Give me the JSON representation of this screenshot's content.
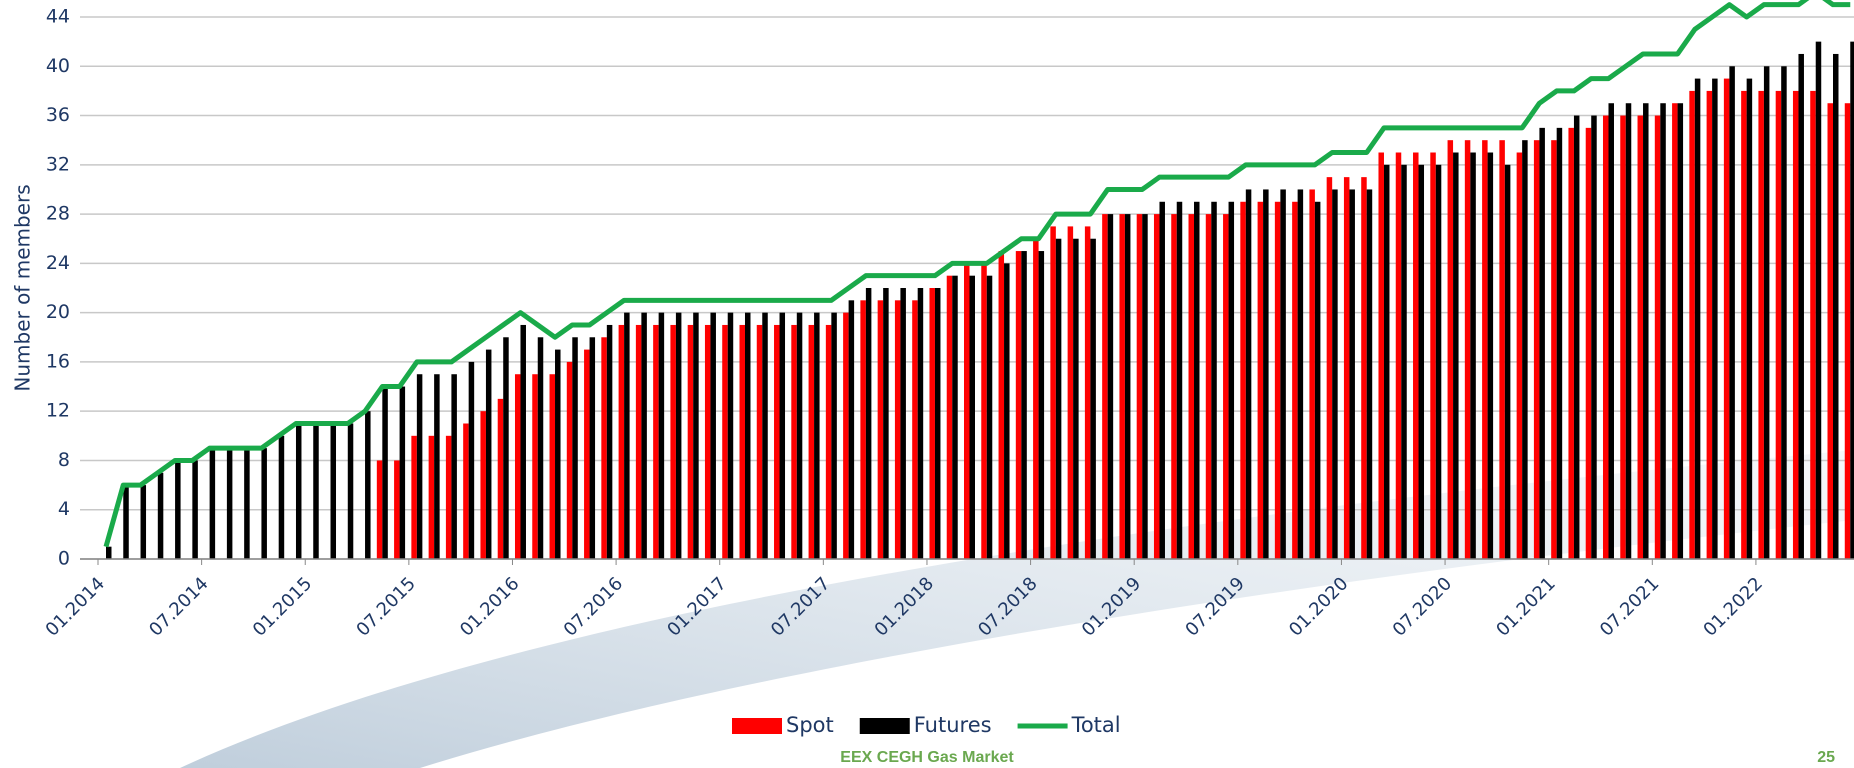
{
  "chart_data": {
    "type": "bar_line",
    "y_label": "Number of members",
    "footer": "EEX CEGH Gas Market",
    "page_number": "25",
    "categories": [
      "01.2014",
      null,
      null,
      null,
      null,
      null,
      "07.2014",
      null,
      null,
      null,
      null,
      null,
      "01.2015",
      null,
      null,
      null,
      null,
      null,
      "07.2015",
      null,
      null,
      null,
      null,
      null,
      "01.2016",
      null,
      null,
      null,
      null,
      null,
      "07.2016",
      null,
      null,
      null,
      null,
      null,
      "01.2017",
      null,
      null,
      null,
      null,
      null,
      "07.2017",
      null,
      null,
      null,
      null,
      null,
      "01.2018",
      null,
      null,
      null,
      null,
      null,
      "07.2018",
      null,
      null,
      null,
      null,
      null,
      "01.2019",
      null,
      null,
      null,
      null,
      null,
      "07.2019",
      null,
      null,
      null,
      null,
      null,
      "01.2020",
      null,
      null,
      null,
      null,
      null,
      "07.2020",
      null,
      null,
      null,
      null,
      null,
      "01.2021",
      null,
      null,
      null,
      null,
      null,
      "07.2021",
      null,
      null,
      null,
      null,
      null,
      "01.2022",
      null,
      null,
      null,
      null,
      null
    ],
    "series": [
      {
        "name": "Spot",
        "color": "#ff0000",
        "kind": "bar",
        "values": [
          null,
          null,
          null,
          null,
          null,
          null,
          null,
          null,
          null,
          null,
          null,
          null,
          null,
          null,
          null,
          null,
          8,
          8,
          10,
          10,
          10,
          11,
          12,
          13,
          15,
          15,
          15,
          16,
          17,
          18,
          19,
          19,
          19,
          19,
          19,
          19,
          19,
          19,
          19,
          19,
          19,
          19,
          19,
          20,
          21,
          21,
          21,
          21,
          22,
          23,
          24,
          24,
          25,
          25,
          26,
          27,
          27,
          27,
          28,
          28,
          28,
          28,
          28,
          28,
          28,
          28,
          29,
          29,
          29,
          29,
          30,
          31,
          31,
          31,
          33,
          33,
          33,
          33,
          34,
          34,
          34,
          34,
          33,
          34,
          34,
          35,
          35,
          36,
          36,
          36,
          36,
          37,
          38,
          38,
          39,
          38,
          38,
          38,
          38,
          38,
          37,
          37
        ]
      },
      {
        "name": "Futures",
        "color": "#000000",
        "kind": "bar",
        "values": [
          1,
          6,
          6,
          7,
          8,
          8,
          9,
          9,
          9,
          9,
          10,
          11,
          11,
          11,
          11,
          12,
          14,
          14,
          15,
          15,
          15,
          16,
          17,
          18,
          19,
          18,
          17,
          18,
          18,
          19,
          20,
          20,
          20,
          20,
          20,
          20,
          20,
          20,
          20,
          20,
          20,
          20,
          20,
          21,
          22,
          22,
          22,
          22,
          22,
          23,
          23,
          23,
          24,
          25,
          25,
          26,
          26,
          26,
          28,
          28,
          28,
          29,
          29,
          29,
          29,
          29,
          30,
          30,
          30,
          30,
          29,
          30,
          30,
          30,
          32,
          32,
          32,
          32,
          33,
          33,
          33,
          32,
          34,
          35,
          35,
          36,
          36,
          37,
          37,
          37,
          37,
          37,
          39,
          39,
          40,
          39,
          40,
          40,
          41,
          42,
          41,
          42
        ]
      },
      {
        "name": "Total",
        "color": "#1aaa4a",
        "kind": "line",
        "values": [
          1,
          6,
          6,
          7,
          8,
          8,
          9,
          9,
          9,
          9,
          10,
          11,
          11,
          11,
          11,
          12,
          14,
          14,
          16,
          16,
          16,
          17,
          18,
          19,
          20,
          19,
          18,
          19,
          19,
          20,
          21,
          21,
          21,
          21,
          21,
          21,
          21,
          21,
          21,
          21,
          21,
          21,
          21,
          22,
          23,
          23,
          23,
          23,
          23,
          24,
          24,
          24,
          25,
          26,
          26,
          28,
          28,
          28,
          30,
          30,
          30,
          31,
          31,
          31,
          31,
          31,
          32,
          32,
          32,
          32,
          32,
          33,
          33,
          33,
          35,
          35,
          35,
          35,
          35,
          35,
          35,
          35,
          35,
          37,
          38,
          38,
          39,
          39,
          40,
          41,
          41,
          41,
          43,
          44,
          45,
          44,
          45,
          45,
          45,
          46,
          45,
          45
        ]
      }
    ],
    "ylim": [
      0,
      44
    ],
    "yticks": [
      0,
      4,
      8,
      12,
      16,
      20,
      24,
      28,
      32,
      36,
      40,
      44
    ],
    "grid": true
  }
}
